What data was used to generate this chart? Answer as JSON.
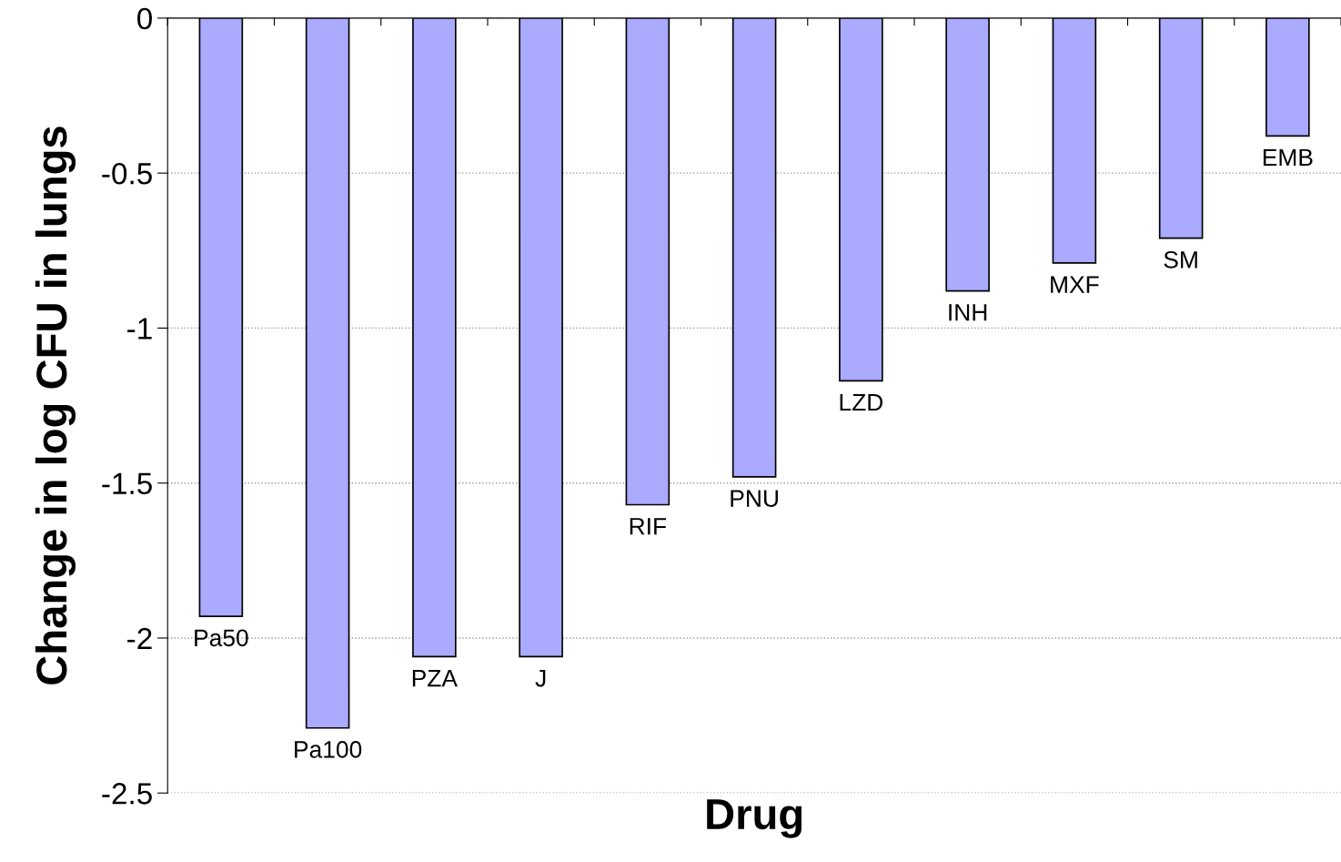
{
  "chart_data": {
    "type": "bar",
    "xlabel": "Drug",
    "ylabel": "Change in log CFU in lungs",
    "categories": [
      "Pa50",
      "Pa100",
      "PZA",
      "J",
      "RIF",
      "PNU",
      "LZD",
      "INH",
      "MXF",
      "SM",
      "EMB"
    ],
    "values": [
      -1.93,
      -2.29,
      -2.06,
      -2.06,
      -1.57,
      -1.48,
      -1.17,
      -0.88,
      -0.79,
      -0.71,
      -0.38
    ],
    "color": "#aaaaff",
    "ylim": [
      -2.5,
      0
    ],
    "yticks": [
      -2.5,
      -2,
      -1.5,
      -1,
      -0.5,
      0
    ],
    "grid": "y"
  }
}
